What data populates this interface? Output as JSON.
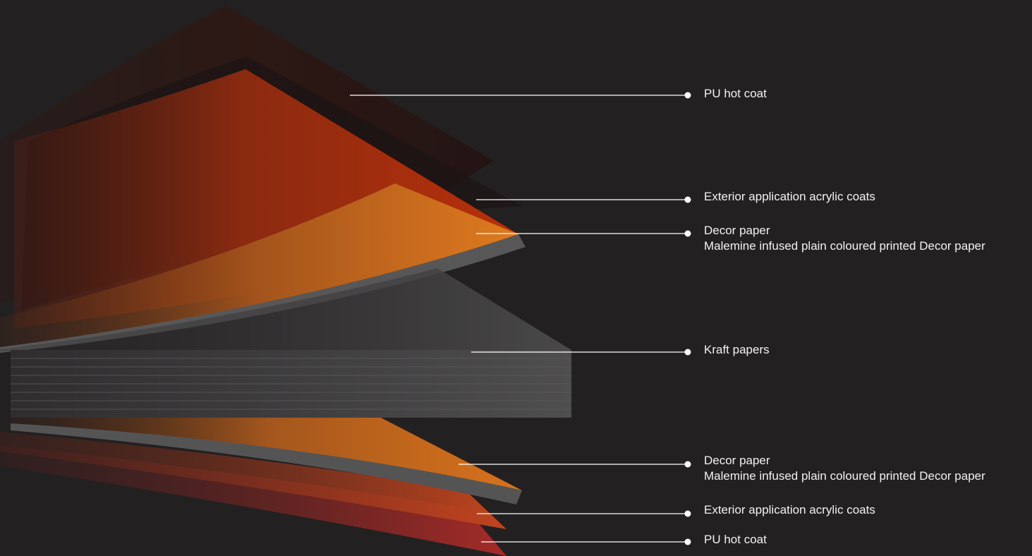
{
  "colors": {
    "background": "#232021",
    "pu_coat_top": "#3a1a13",
    "acrylic_top": "#b32a0c",
    "decor_paper": "#d96f1c",
    "kraft": "#4e4d4e",
    "acrylic_bottom": "#b8421f",
    "pu_coat_bottom": "#9a2a27",
    "leader_line": "#ffffff"
  },
  "callouts": [
    {
      "id": "pu-hot-coat-top",
      "title": "PU hot coat",
      "subtitle": ""
    },
    {
      "id": "acrylic-top",
      "title": "Exterior application acrylic coats",
      "subtitle": ""
    },
    {
      "id": "decor-top",
      "title": "Decor paper",
      "subtitle": "Malemine infused plain coloured printed Decor paper"
    },
    {
      "id": "kraft",
      "title": "Kraft papers",
      "subtitle": ""
    },
    {
      "id": "decor-bottom",
      "title": "Decor paper",
      "subtitle": "Malemine infused plain coloured printed Decor paper"
    },
    {
      "id": "acrylic-bottom",
      "title": "Exterior application acrylic coats",
      "subtitle": ""
    },
    {
      "id": "pu-hot-coat-bottom",
      "title": "PU hot coat",
      "subtitle": ""
    }
  ]
}
